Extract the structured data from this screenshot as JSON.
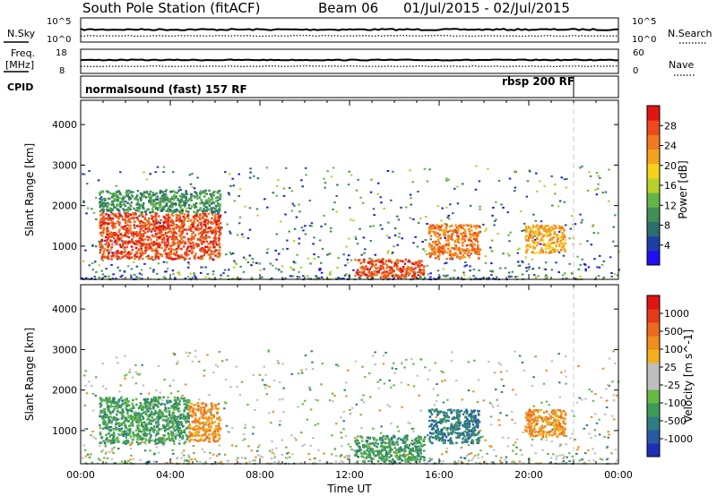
{
  "header": {
    "station": "South Pole Station (fitACF)",
    "beam": "Beam 06",
    "dates": "01/Jul/2015 - 02/Jul/2015"
  },
  "strip_labels": {
    "nsky": "N.Sky",
    "nsearch": "N.Search",
    "freq_line1": "Freq.",
    "freq_line2": "[MHz]",
    "nave": "Nave",
    "cpid": "CPID",
    "nsky_top": "10^5",
    "nsky_bottom": "10^0",
    "nsearch_top": "10^5",
    "nsearch_bottom": "10^0",
    "freq_top": "18",
    "freq_bottom": "8",
    "nave_top": "60",
    "nave_bottom": "0"
  },
  "cpid_modes": [
    {
      "label": "normalsound (fast) 157 RF",
      "start_hour": 0,
      "end_hour": 22
    },
    {
      "label": "rbsp 200 RF",
      "start_hour": 22,
      "end_hour": 24
    }
  ],
  "chart_data": [
    {
      "type": "heatmap",
      "name": "power",
      "ylabel": "Slant Range [km]",
      "xlabel": "",
      "xlim": [
        0,
        24
      ],
      "ylim": [
        180,
        4600
      ],
      "yticks": [
        1000,
        2000,
        3000,
        4000
      ],
      "colorbar_label": "Power [dB]",
      "colorbar_ticks": [
        "4",
        "8",
        "12",
        "16",
        "20",
        "24",
        "28"
      ],
      "colorbar_colors": [
        "#1e10f2",
        "#1f3fa8",
        "#2c6d6e",
        "#3f8f57",
        "#64b548",
        "#b9cf2a",
        "#f5d21c",
        "#f5a21e",
        "#f07a1e",
        "#ea4a1c",
        "#e01515"
      ],
      "regions": [
        {
          "t0": 0.8,
          "t1": 6.2,
          "r0": 700,
          "r1": 1850,
          "value": 26
        },
        {
          "t0": 0.8,
          "t1": 6.2,
          "r0": 1850,
          "r1": 2400,
          "value": 10
        },
        {
          "t0": 12.2,
          "t1": 15.3,
          "r0": 250,
          "r1": 700,
          "value": 27
        },
        {
          "t0": 15.5,
          "t1": 17.8,
          "r0": 700,
          "r1": 1550,
          "value": 23
        },
        {
          "t0": 19.8,
          "t1": 21.6,
          "r0": 850,
          "r1": 1550,
          "value": 22
        }
      ],
      "annotation_hour": 22
    },
    {
      "type": "heatmap",
      "name": "velocity",
      "ylabel": "Slant Range [km]",
      "xlabel": "Time UT",
      "xlim": [
        0,
        24
      ],
      "ylim": [
        180,
        4600
      ],
      "xticks": [
        "00:00",
        "04:00",
        "08:00",
        "12:00",
        "16:00",
        "20:00",
        "00:00"
      ],
      "yticks": [
        1000,
        2000,
        3000,
        4000
      ],
      "colorbar_label": "Velocity [m s^-1]",
      "colorbar_ticks": [
        "1000",
        "500",
        "100",
        "25",
        "-25",
        "-100",
        "-500",
        "-1000"
      ],
      "colorbar_colors": [
        "#1d2fb8",
        "#2a5aa3",
        "#2f7c83",
        "#3f9a58",
        "#67b946",
        "#bfbfbf",
        "#bfbfbf",
        "#f3b01c",
        "#f08d1e",
        "#ec6a1d",
        "#e53a1a",
        "#e01515"
      ],
      "regions": [
        {
          "t0": 0.8,
          "t1": 4.8,
          "r0": 700,
          "r1": 1850,
          "value": 80
        },
        {
          "t0": 4.8,
          "t1": 6.2,
          "r0": 750,
          "r1": 1700,
          "value": -150
        },
        {
          "t0": 12.2,
          "t1": 15.3,
          "r0": 250,
          "r1": 900,
          "value": 60
        },
        {
          "t0": 15.5,
          "t1": 17.8,
          "r0": 700,
          "r1": 1550,
          "value": 150
        },
        {
          "t0": 19.8,
          "t1": 21.6,
          "r0": 850,
          "r1": 1550,
          "value": -200
        }
      ],
      "annotation_hour": 22
    }
  ]
}
